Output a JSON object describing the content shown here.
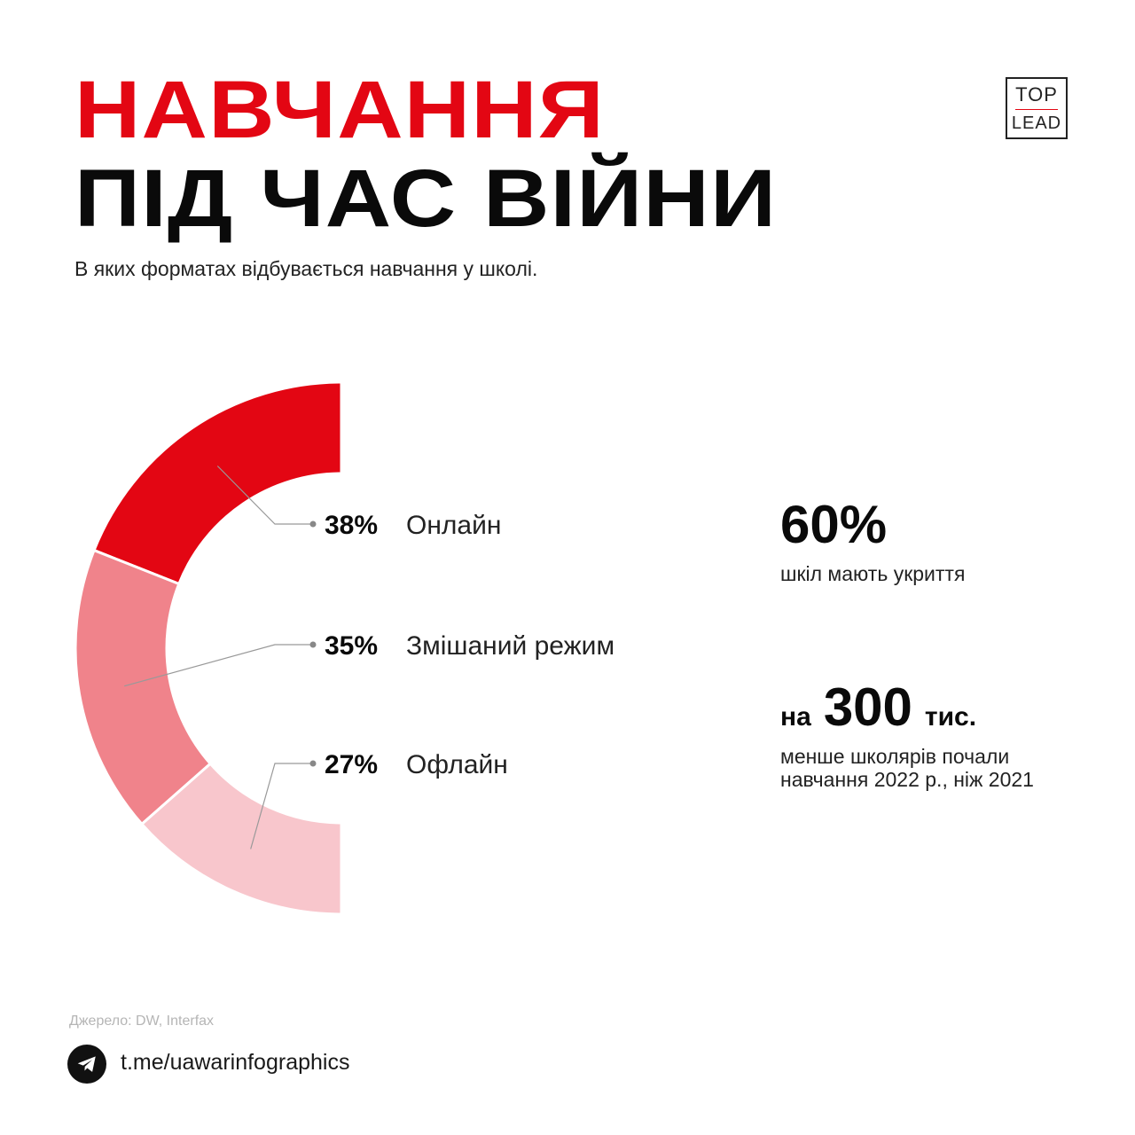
{
  "header": {
    "title_line1": "НАВЧАННЯ",
    "title_line2": "ПІД ЧАС ВІЙНИ",
    "subtitle": "В яких форматах відбувається навчання у школі."
  },
  "logo": {
    "top": "TOP",
    "bottom": "LEAD"
  },
  "chart_data": {
    "type": "pie",
    "style": "half-donut (left semicircle)",
    "categories": [
      "Онлайн",
      "Змішаний режим",
      "Офлайн"
    ],
    "values": [
      38,
      35,
      27
    ],
    "value_labels": [
      "38%",
      "35%",
      "27%"
    ],
    "colors": [
      "#e30613",
      "#f0838b",
      "#f8c6cc"
    ]
  },
  "stats": [
    {
      "value": "60%",
      "desc": "шкіл мають укриття"
    },
    {
      "prefix": "на",
      "value": "300",
      "suffix": "тис.",
      "desc_lines": [
        "менше школярів почали",
        "навчання 2022 р., ніж 2021"
      ]
    }
  ],
  "source": "Джерело:  DW, Interfax",
  "telegram": {
    "icon": "telegram-icon",
    "link": "t.me/uawarinfographics"
  },
  "colors": {
    "accent": "#e30613",
    "text": "#0a0a0a"
  }
}
